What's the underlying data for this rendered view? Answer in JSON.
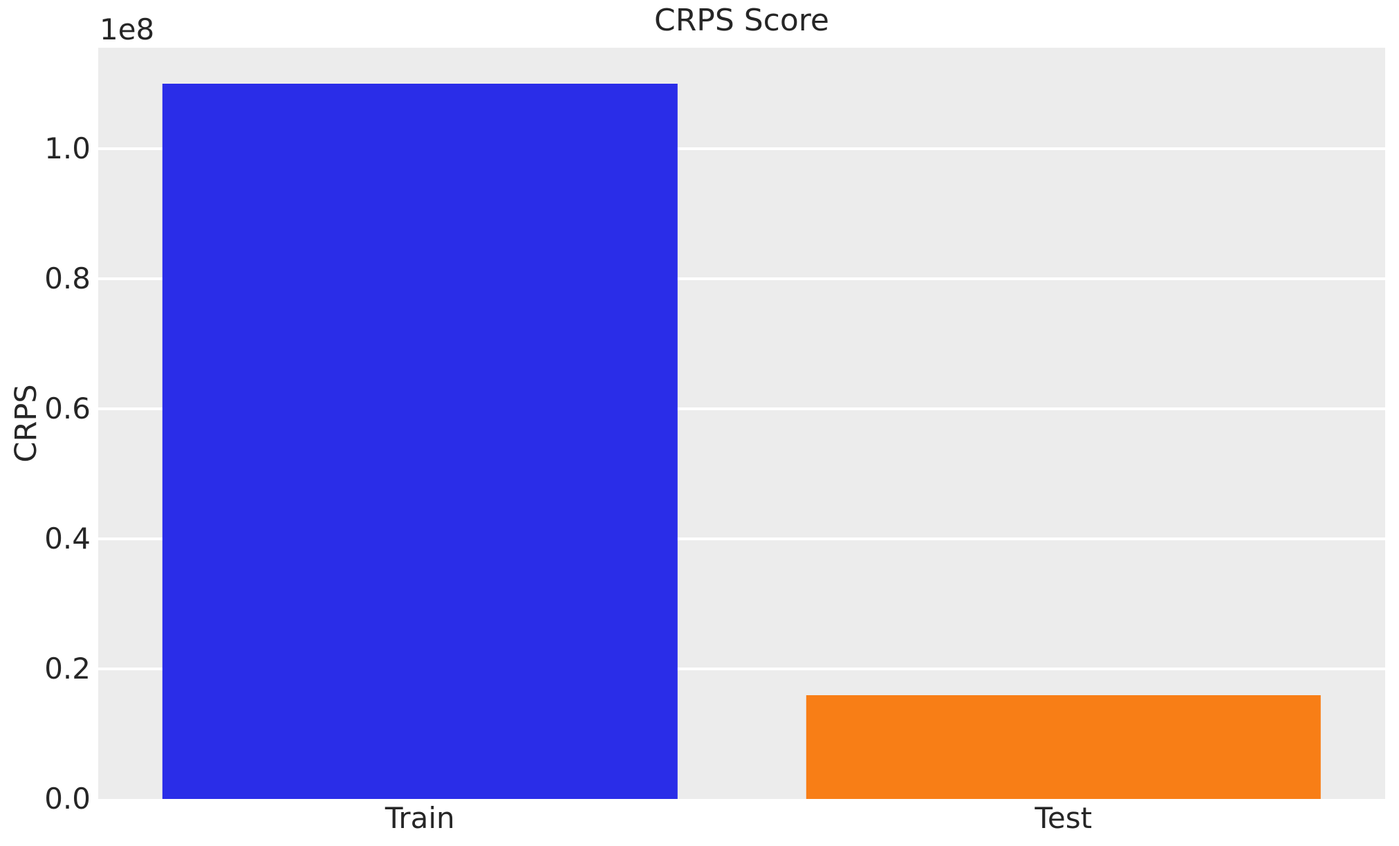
{
  "chart_data": {
    "type": "bar",
    "title": "CRPS Score",
    "ylabel": "CRPS",
    "xlabel": "",
    "scale_offset_label": "1e8",
    "categories": [
      "Train",
      "Test"
    ],
    "values": [
      110000000,
      16000000
    ],
    "bar_colors": [
      "#2a2de8",
      "#f87e16"
    ],
    "yticks": [
      0.0,
      0.2,
      0.4,
      0.6,
      0.8,
      1.0
    ],
    "ytick_labels": [
      "0.0",
      "0.2",
      "0.4",
      "0.6",
      "0.8",
      "1.0"
    ],
    "ytick_scale": 100000000,
    "ylim": [
      0,
      115500000
    ],
    "bar_width_fraction": 0.8,
    "legend": "none",
    "grid": "horizontal",
    "style": {
      "figure_background": "#ffffff",
      "plot_background": "#ececec",
      "grid_color": "#ffffff",
      "text_color": "#262626"
    }
  }
}
